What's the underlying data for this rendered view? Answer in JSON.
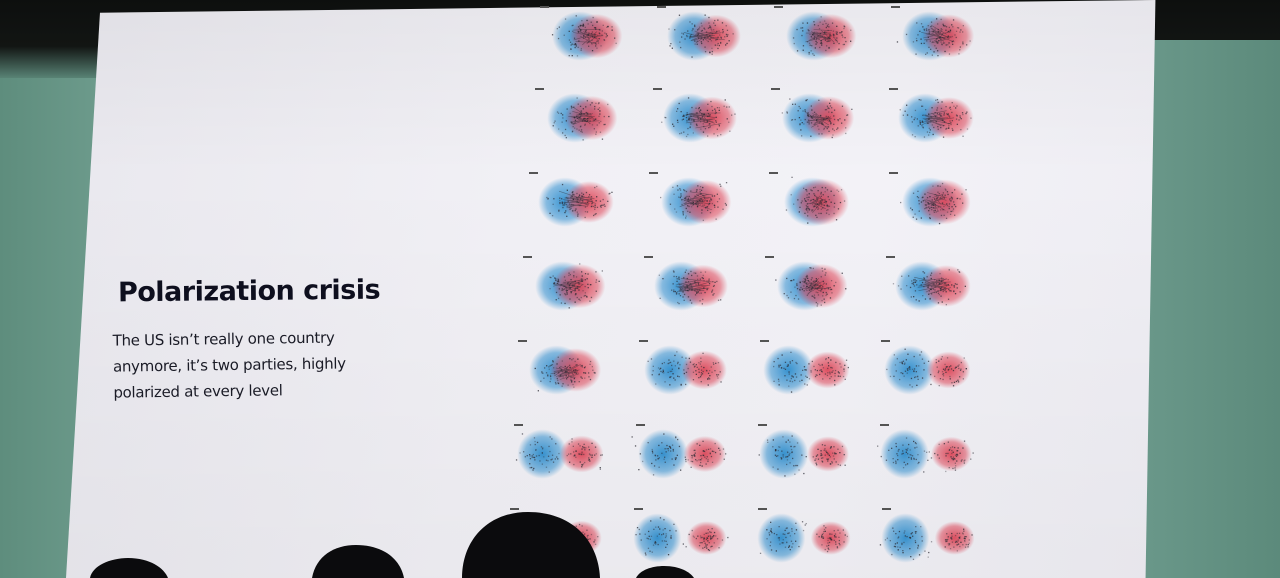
{
  "slide": {
    "title": "Polarization crisis",
    "subtitle": "The US isn’t really one country anymore, it’s two parties, highly polarized at every level"
  },
  "figure": {
    "description_colors": {
      "democrat": "#2e8fd0",
      "republican": "#e0485a",
      "edge": "#2a2a33"
    },
    "rows": [
      {
        "row": 1,
        "panels": 4,
        "separation": [
          0.15,
          0.25,
          0.15,
          0.2
        ]
      },
      {
        "row": 2,
        "panels": 4,
        "separation": [
          0.15,
          0.25,
          0.2,
          0.3
        ]
      },
      {
        "row": 3,
        "panels": 4,
        "separation": [
          0.3,
          0.15,
          0.0,
          0.1
        ]
      },
      {
        "row": 4,
        "panels": 4,
        "separation": [
          0.15,
          0.25,
          0.15,
          0.3
        ]
      },
      {
        "row": 5,
        "panels": 4,
        "separation": [
          0.2,
          0.5,
          0.6,
          0.6
        ]
      },
      {
        "row": 6,
        "panels": 4,
        "separation": [
          0.6,
          0.65,
          0.7,
          0.75
        ]
      },
      {
        "row": 7,
        "panels": 4,
        "separation": [
          0.75,
          0.8,
          0.8,
          0.8
        ]
      }
    ]
  }
}
